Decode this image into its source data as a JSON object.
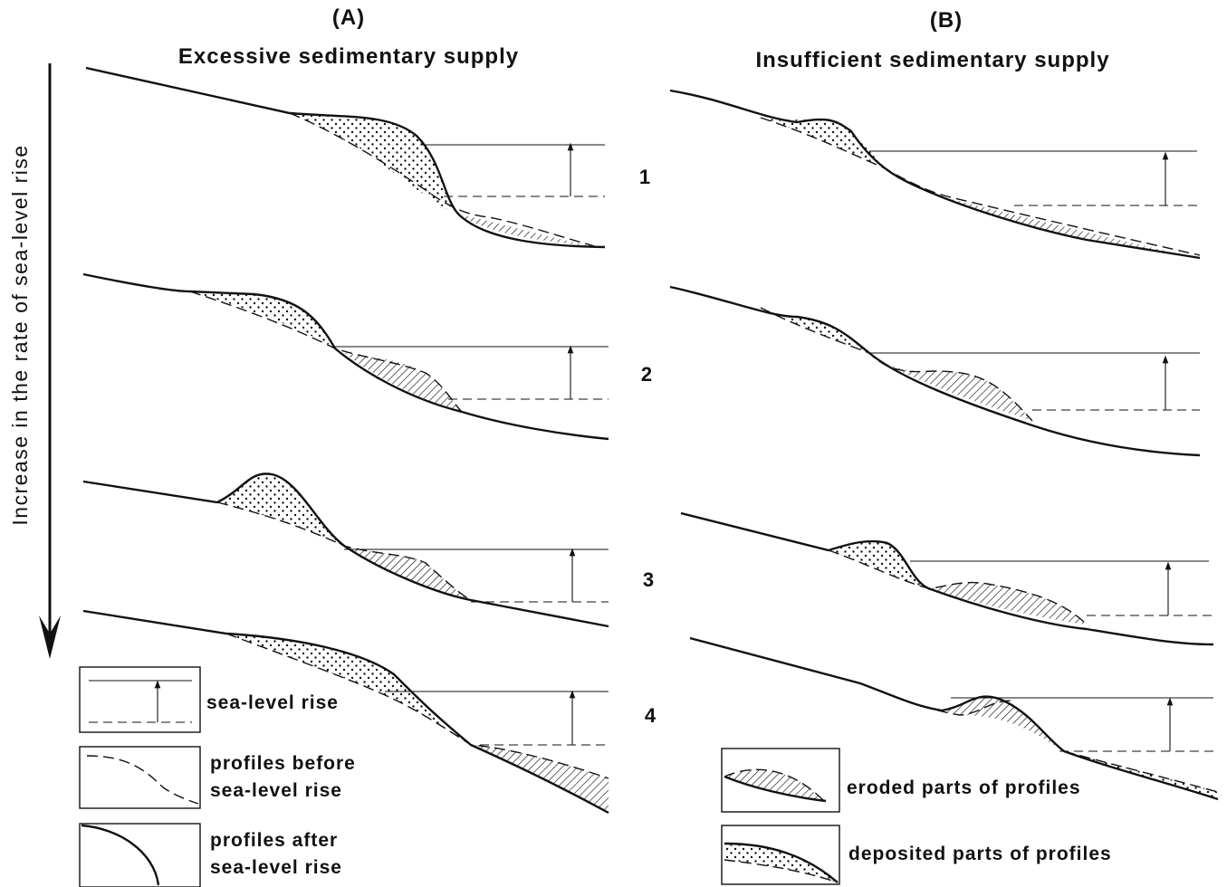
{
  "panels": [
    {
      "label": "(A)",
      "title": "Excessive sedimentary supply"
    },
    {
      "label": "(B)",
      "title": "Insufficient sedimentary supply"
    }
  ],
  "axis_label": "Increase in the rate of sea-level rise",
  "rows": [
    "1",
    "2",
    "3",
    "4"
  ],
  "legend": [
    {
      "lines": [
        "sea-level rise"
      ]
    },
    {
      "lines": [
        "profiles before",
        "sea-level rise"
      ]
    },
    {
      "lines": [
        "profiles after",
        "sea-level rise"
      ]
    },
    {
      "lines": [
        "eroded parts of profiles"
      ]
    },
    {
      "lines": [
        "deposited parts of profiles"
      ]
    }
  ]
}
